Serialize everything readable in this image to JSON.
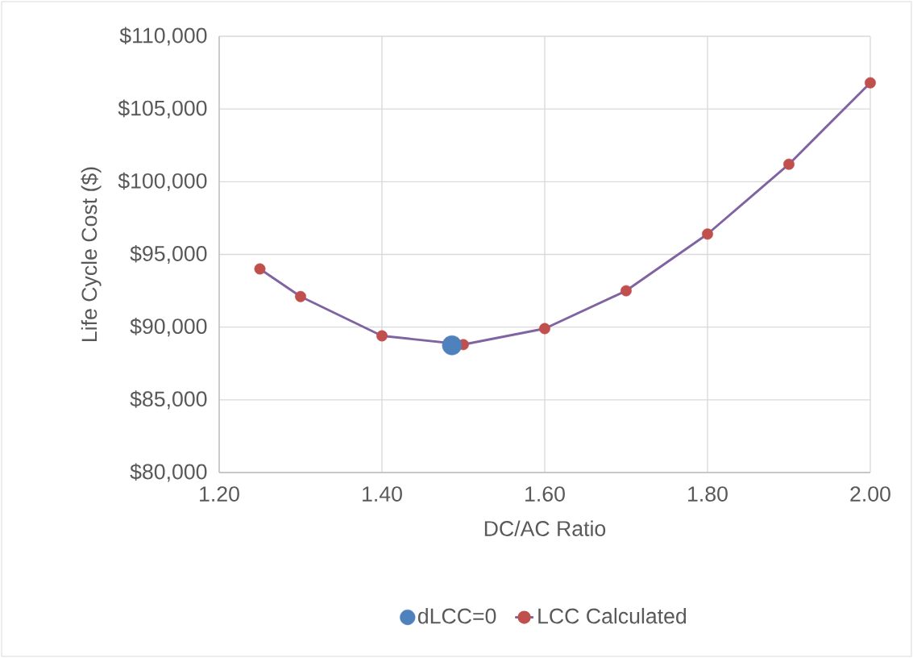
{
  "chart_data": {
    "type": "line",
    "xlabel": "DC/AC Ratio",
    "ylabel": "Life Cycle Cost ($)",
    "xlim": [
      1.2,
      2.0
    ],
    "xticks": [
      {
        "value": 1.2,
        "label": "1.20"
      },
      {
        "value": 1.4,
        "label": "1.40"
      },
      {
        "value": 1.6,
        "label": "1.60"
      },
      {
        "value": 1.8,
        "label": "1.80"
      },
      {
        "value": 2.0,
        "label": "2.00"
      }
    ],
    "ylim": [
      80000,
      110000
    ],
    "yticks": [
      {
        "value": 80000,
        "label": "$80,000"
      },
      {
        "value": 85000,
        "label": "$85,000"
      },
      {
        "value": 90000,
        "label": "$90,000"
      },
      {
        "value": 95000,
        "label": "$95,000"
      },
      {
        "value": 100000,
        "label": "$100,000"
      },
      {
        "value": 105000,
        "label": "$105,000"
      },
      {
        "value": 110000,
        "label": "$110,000"
      }
    ],
    "grid": true,
    "legend": "bottom",
    "series": [
      {
        "name": "dLCC=0",
        "type": "scatter",
        "marker": "circle",
        "color": "#4f81bd",
        "x": [
          1.486
        ],
        "values": [
          88750
        ]
      },
      {
        "name": "LCC Calculated",
        "marker": "circle",
        "line_style": "solid",
        "color": "#8064a2",
        "colors": [
          "#c0504d",
          "#c0504d",
          "#c0504d",
          "#c0504d",
          "#c0504d",
          "#c0504d",
          "#c0504d",
          "#c0504d",
          "#c0504d"
        ],
        "x": [
          1.25,
          1.3,
          1.4,
          1.5,
          1.6,
          1.7,
          1.8,
          1.9,
          2.0
        ],
        "values": [
          94000,
          92100,
          89400,
          88800,
          89900,
          92500,
          96400,
          101200,
          106800
        ]
      }
    ]
  }
}
